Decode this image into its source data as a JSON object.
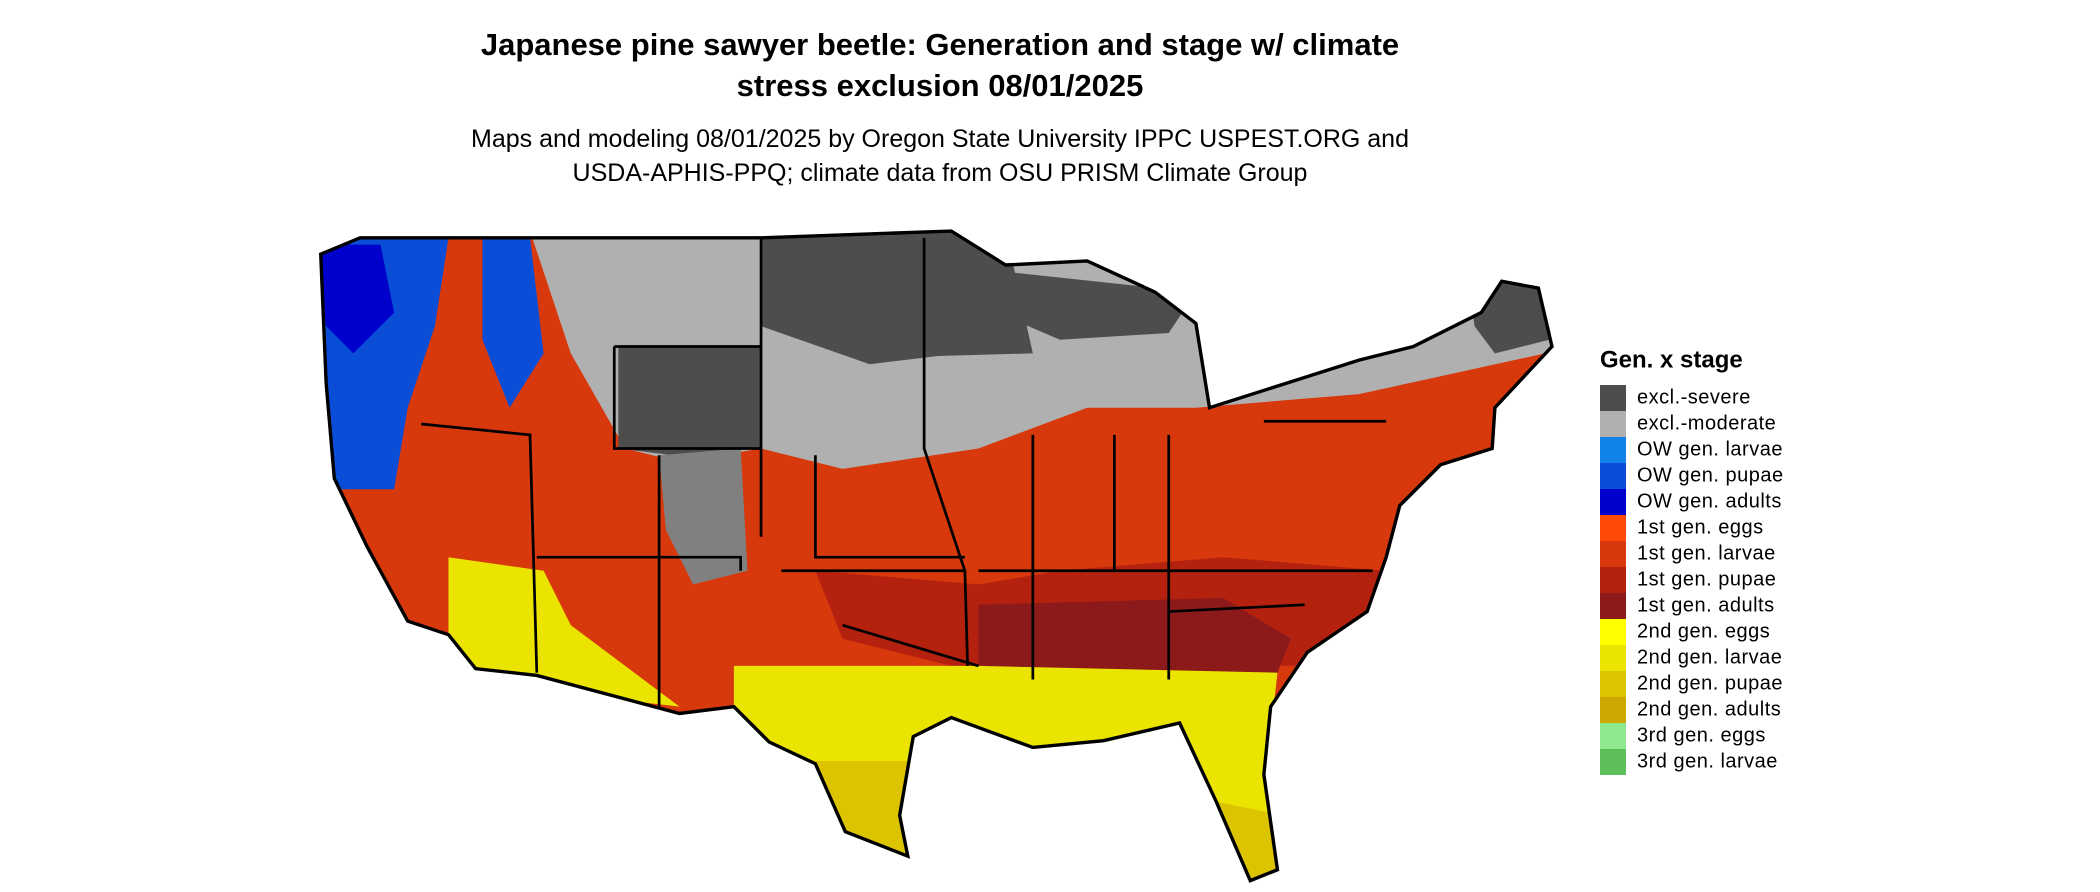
{
  "title": [
    "Japanese pine sawyer beetle: Generation and stage w/ climate",
    "stress exclusion 08/01/2025"
  ],
  "subtitle": [
    "Maps and modeling 08/01/2025 by Oregon State University IPPC USPEST.ORG and",
    "USDA-APHIS-PPQ; climate data from OSU PRISM Climate Group"
  ],
  "legend": {
    "title": "Gen. x stage",
    "items": [
      {
        "label": "excl.-severe",
        "color": "#4d4d4d"
      },
      {
        "label": "excl.-moderate",
        "color": "#b0b0b0"
      },
      {
        "label": "OW gen. larvae",
        "color": "#1283e8"
      },
      {
        "label": "OW gen. pupae",
        "color": "#0a4ed8"
      },
      {
        "label": "OW gen. adults",
        "color": "#0000cc"
      },
      {
        "label": "1st gen. eggs",
        "color": "#ff4a0a"
      },
      {
        "label": "1st gen. larvae",
        "color": "#d7380c"
      },
      {
        "label": "1st gen. pupae",
        "color": "#b4220f"
      },
      {
        "label": "1st gen. adults",
        "color": "#8c1a1a"
      },
      {
        "label": "2nd gen. eggs",
        "color": "#ffff00"
      },
      {
        "label": "2nd gen. larvae",
        "color": "#ebe300"
      },
      {
        "label": "2nd gen. pupae",
        "color": "#dcc400"
      },
      {
        "label": "2nd gen. adults",
        "color": "#cca800"
      },
      {
        "label": "3rd gen. eggs",
        "color": "#8ee88e"
      },
      {
        "label": "3rd gen. larvae",
        "color": "#5cbf5c"
      }
    ]
  }
}
